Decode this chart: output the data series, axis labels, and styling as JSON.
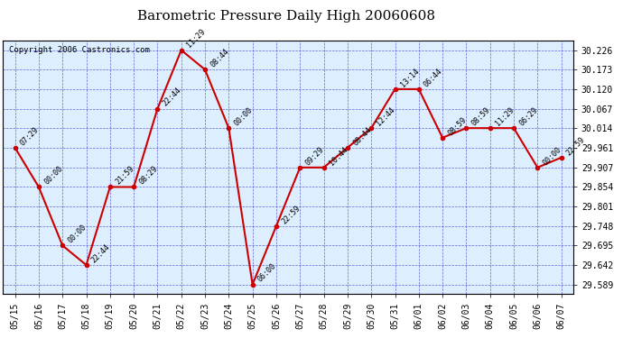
{
  "title": "Barometric Pressure Daily High 20060608",
  "copyright": "Copyright 2006 Castronics.com",
  "dates": [
    "05/15",
    "05/16",
    "05/17",
    "05/18",
    "05/19",
    "05/20",
    "05/21",
    "05/22",
    "05/23",
    "05/24",
    "05/25",
    "05/26",
    "05/27",
    "05/28",
    "05/29",
    "05/30",
    "05/31",
    "06/01",
    "06/02",
    "06/03",
    "06/04",
    "06/05",
    "06/06",
    "06/07"
  ],
  "values": [
    29.961,
    29.854,
    29.695,
    29.642,
    29.854,
    29.854,
    30.067,
    30.226,
    30.173,
    30.014,
    29.589,
    29.748,
    29.907,
    29.907,
    29.961,
    30.014,
    30.12,
    30.12,
    29.988,
    30.014,
    30.014,
    30.014,
    29.907,
    29.934
  ],
  "labels": [
    "07:29",
    "00:00",
    "00:00",
    "22:44",
    "21:59",
    "08:29",
    "22:44",
    "11:29",
    "08:44",
    "00:00",
    "06:00",
    "22:59",
    "09:29",
    "10:44",
    "08:44",
    "12:44",
    "13:14",
    "06:44",
    "08:59",
    "08:59",
    "11:29",
    "06:29",
    "00:00",
    "22:59"
  ],
  "ylim_min": 29.563,
  "ylim_max": 30.252,
  "yticks": [
    29.589,
    29.642,
    29.695,
    29.748,
    29.801,
    29.854,
    29.907,
    29.961,
    30.014,
    30.067,
    30.12,
    30.173,
    30.226
  ],
  "line_color": "#cc0000",
  "marker_color": "#cc0000",
  "bg_color": "#ffffff",
  "plot_bg": "#ddeeff",
  "grid_color": "#4444cc",
  "title_fontsize": 11,
  "label_fontsize": 6,
  "tick_fontsize": 7,
  "copyright_fontsize": 6.5
}
